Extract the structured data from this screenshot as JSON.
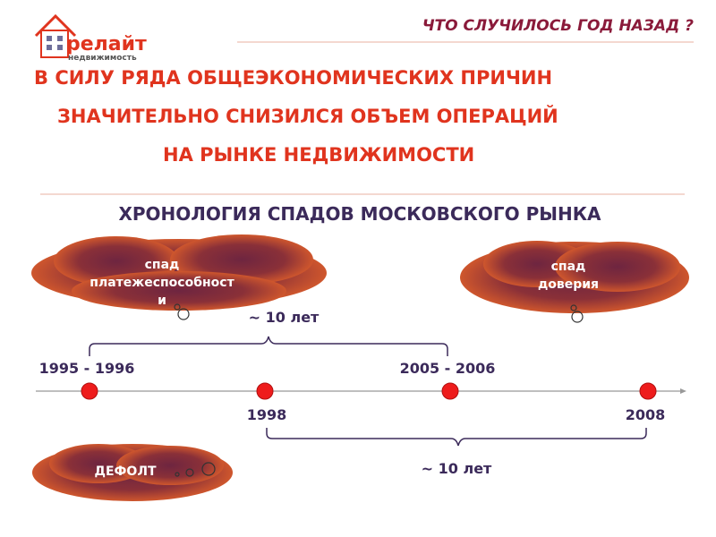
{
  "logo": {
    "name": "релайт",
    "tagline": "недвижимость"
  },
  "header": {
    "title": "ЧТО СЛУЧИЛОСЬ ГОД НАЗАД ?"
  },
  "headline": [
    "В СИЛУ РЯДА ОБЩЕЭКОНОМИЧЕСКИХ ПРИЧИН",
    "ЗНАЧИТЕЛЬНО СНИЗИЛСЯ ОБЪЕМ ОПЕРАЦИЙ",
    "НА РЫНКЕ НЕДВИЖИМОСТИ"
  ],
  "subtitle": "ХРОНОЛОГИЯ СПАДОВ МОСКОВСКОГО РЫНКА",
  "clouds": [
    {
      "lines": [
        "спад",
        "платежеспособност",
        "и"
      ]
    },
    {
      "lines": [
        "спад",
        "доверия"
      ]
    },
    {
      "lines": [
        "ДЕФОЛТ"
      ]
    }
  ],
  "timeline": {
    "points": [
      "1995 - 1996",
      "1998",
      "2005 - 2006",
      "2008"
    ]
  },
  "brackets": [
    "~ 10 лет",
    "~ 10 лет"
  ]
}
